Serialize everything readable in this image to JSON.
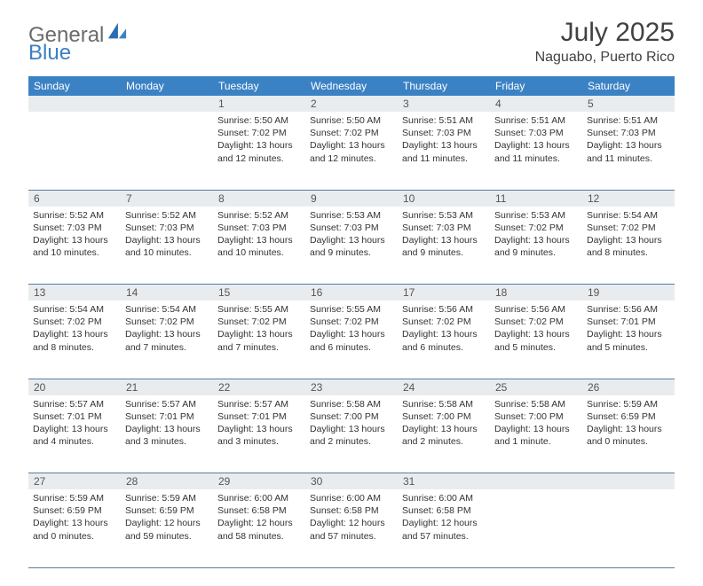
{
  "logo": {
    "text1": "General",
    "text2": "Blue"
  },
  "title": "July 2025",
  "location": "Naguabo, Puerto Rico",
  "colors": {
    "header_bg": "#3b82c4",
    "header_text": "#ffffff",
    "daynum_bg": "#e9ecef",
    "rule": "#5a7ca0",
    "logo_gray": "#6b6b6b",
    "logo_blue": "#3b7fc4"
  },
  "weekdays": [
    "Sunday",
    "Monday",
    "Tuesday",
    "Wednesday",
    "Thursday",
    "Friday",
    "Saturday"
  ],
  "weeks": [
    [
      null,
      null,
      {
        "n": "1",
        "sr": "5:50 AM",
        "ss": "7:02 PM",
        "dl": "13 hours and 12 minutes."
      },
      {
        "n": "2",
        "sr": "5:50 AM",
        "ss": "7:02 PM",
        "dl": "13 hours and 12 minutes."
      },
      {
        "n": "3",
        "sr": "5:51 AM",
        "ss": "7:03 PM",
        "dl": "13 hours and 11 minutes."
      },
      {
        "n": "4",
        "sr": "5:51 AM",
        "ss": "7:03 PM",
        "dl": "13 hours and 11 minutes."
      },
      {
        "n": "5",
        "sr": "5:51 AM",
        "ss": "7:03 PM",
        "dl": "13 hours and 11 minutes."
      }
    ],
    [
      {
        "n": "6",
        "sr": "5:52 AM",
        "ss": "7:03 PM",
        "dl": "13 hours and 10 minutes."
      },
      {
        "n": "7",
        "sr": "5:52 AM",
        "ss": "7:03 PM",
        "dl": "13 hours and 10 minutes."
      },
      {
        "n": "8",
        "sr": "5:52 AM",
        "ss": "7:03 PM",
        "dl": "13 hours and 10 minutes."
      },
      {
        "n": "9",
        "sr": "5:53 AM",
        "ss": "7:03 PM",
        "dl": "13 hours and 9 minutes."
      },
      {
        "n": "10",
        "sr": "5:53 AM",
        "ss": "7:03 PM",
        "dl": "13 hours and 9 minutes."
      },
      {
        "n": "11",
        "sr": "5:53 AM",
        "ss": "7:02 PM",
        "dl": "13 hours and 9 minutes."
      },
      {
        "n": "12",
        "sr": "5:54 AM",
        "ss": "7:02 PM",
        "dl": "13 hours and 8 minutes."
      }
    ],
    [
      {
        "n": "13",
        "sr": "5:54 AM",
        "ss": "7:02 PM",
        "dl": "13 hours and 8 minutes."
      },
      {
        "n": "14",
        "sr": "5:54 AM",
        "ss": "7:02 PM",
        "dl": "13 hours and 7 minutes."
      },
      {
        "n": "15",
        "sr": "5:55 AM",
        "ss": "7:02 PM",
        "dl": "13 hours and 7 minutes."
      },
      {
        "n": "16",
        "sr": "5:55 AM",
        "ss": "7:02 PM",
        "dl": "13 hours and 6 minutes."
      },
      {
        "n": "17",
        "sr": "5:56 AM",
        "ss": "7:02 PM",
        "dl": "13 hours and 6 minutes."
      },
      {
        "n": "18",
        "sr": "5:56 AM",
        "ss": "7:02 PM",
        "dl": "13 hours and 5 minutes."
      },
      {
        "n": "19",
        "sr": "5:56 AM",
        "ss": "7:01 PM",
        "dl": "13 hours and 5 minutes."
      }
    ],
    [
      {
        "n": "20",
        "sr": "5:57 AM",
        "ss": "7:01 PM",
        "dl": "13 hours and 4 minutes."
      },
      {
        "n": "21",
        "sr": "5:57 AM",
        "ss": "7:01 PM",
        "dl": "13 hours and 3 minutes."
      },
      {
        "n": "22",
        "sr": "5:57 AM",
        "ss": "7:01 PM",
        "dl": "13 hours and 3 minutes."
      },
      {
        "n": "23",
        "sr": "5:58 AM",
        "ss": "7:00 PM",
        "dl": "13 hours and 2 minutes."
      },
      {
        "n": "24",
        "sr": "5:58 AM",
        "ss": "7:00 PM",
        "dl": "13 hours and 2 minutes."
      },
      {
        "n": "25",
        "sr": "5:58 AM",
        "ss": "7:00 PM",
        "dl": "13 hours and 1 minute."
      },
      {
        "n": "26",
        "sr": "5:59 AM",
        "ss": "6:59 PM",
        "dl": "13 hours and 0 minutes."
      }
    ],
    [
      {
        "n": "27",
        "sr": "5:59 AM",
        "ss": "6:59 PM",
        "dl": "13 hours and 0 minutes."
      },
      {
        "n": "28",
        "sr": "5:59 AM",
        "ss": "6:59 PM",
        "dl": "12 hours and 59 minutes."
      },
      {
        "n": "29",
        "sr": "6:00 AM",
        "ss": "6:58 PM",
        "dl": "12 hours and 58 minutes."
      },
      {
        "n": "30",
        "sr": "6:00 AM",
        "ss": "6:58 PM",
        "dl": "12 hours and 57 minutes."
      },
      {
        "n": "31",
        "sr": "6:00 AM",
        "ss": "6:58 PM",
        "dl": "12 hours and 57 minutes."
      },
      null,
      null
    ]
  ],
  "labels": {
    "sunrise": "Sunrise:",
    "sunset": "Sunset:",
    "daylight": "Daylight:"
  }
}
